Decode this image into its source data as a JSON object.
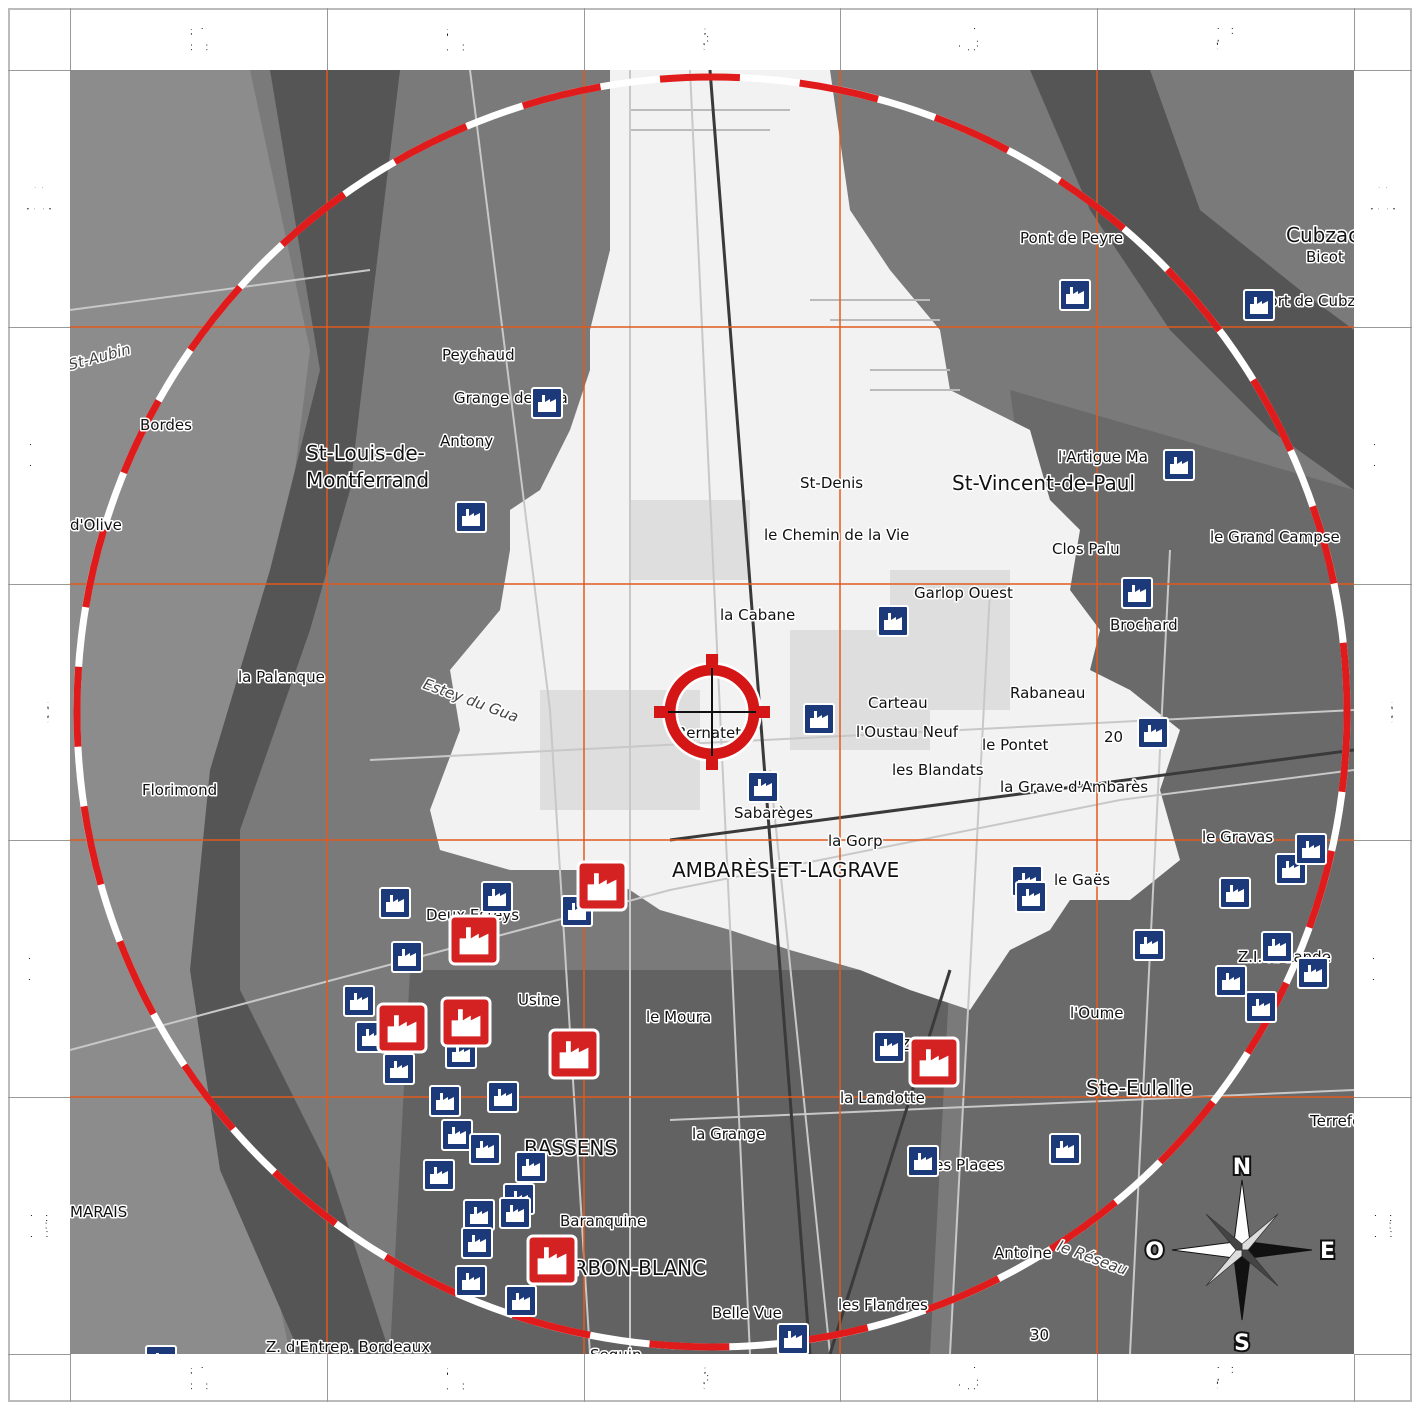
{
  "columns": [
    "1",
    "2",
    "3",
    "4",
    "5"
  ],
  "rows": [
    "A",
    "B",
    "C",
    "D",
    "E"
  ],
  "compass": {
    "n": "N",
    "s": "S",
    "e": "E",
    "w": "O"
  },
  "colors": {
    "land_dark": "#6e6e6e",
    "land_mid": "#8a8a8a",
    "water": "#4f4f4f",
    "highlight_area": "#f4f4f4",
    "grid_line": "#e05a20",
    "ring_red": "#e01b1b",
    "ring_white": "#ffffff",
    "target": "#d51616",
    "site_blue": "#1c3a7a",
    "site_red": "#d42121"
  },
  "place_labels": [
    {
      "text": "Peychaud"
    },
    {
      "text": "Grange de Gua"
    },
    {
      "text": "Antony"
    },
    {
      "text": "St-Louis-de-"
    },
    {
      "text": "Montferrand"
    },
    {
      "text": "St-Aubin"
    },
    {
      "text": "Bordes"
    },
    {
      "text": "d'Olive"
    },
    {
      "text": "Pont de Peyre"
    },
    {
      "text": "Cubzac"
    },
    {
      "text": "Bicot"
    },
    {
      "text": "Port de Cubzac"
    },
    {
      "text": "St-Denis"
    },
    {
      "text": "St-Vincent-de-Paul"
    },
    {
      "text": "l'Artigue Ma"
    },
    {
      "text": "le Chemin de la Vie"
    },
    {
      "text": "Clos Palu"
    },
    {
      "text": "le Grand Campse"
    },
    {
      "text": "Garlop Ouest"
    },
    {
      "text": "la Cabane"
    },
    {
      "text": "Brochard"
    },
    {
      "text": "la Palanque"
    },
    {
      "text": "Estey du Gua"
    },
    {
      "text": "Carteau"
    },
    {
      "text": "Rabaneau"
    },
    {
      "text": "l'Oustau Neuf"
    },
    {
      "text": "Bernatet"
    },
    {
      "text": "le Pontet"
    },
    {
      "text": "les Blandats"
    },
    {
      "text": "la Grave d'Ambarès"
    },
    {
      "text": "Florimond"
    },
    {
      "text": "Sabarèges"
    },
    {
      "text": "la Gorp"
    },
    {
      "text": "AMBARÈS-ET-LAGRAVE"
    },
    {
      "text": "le Gravas"
    },
    {
      "text": "le Gaës"
    },
    {
      "text": "Deux Esteys"
    },
    {
      "text": "Z.I. la Lande"
    },
    {
      "text": "Usine"
    },
    {
      "text": "le Moura"
    },
    {
      "text": "l'Oume"
    },
    {
      "text": "Z.I."
    },
    {
      "text": "la Landotte"
    },
    {
      "text": "Ste-Eulalie"
    },
    {
      "text": "la Grange"
    },
    {
      "text": "Terrefort"
    },
    {
      "text": "BASSENS"
    },
    {
      "text": "les Places"
    },
    {
      "text": "MARAIS"
    },
    {
      "text": "Baranquine"
    },
    {
      "text": "le Réseau"
    },
    {
      "text": "CARBON-BLANC"
    },
    {
      "text": "Antoine"
    },
    {
      "text": "Belle Vue"
    },
    {
      "text": "les Flandres"
    },
    {
      "text": "Z. d'Entrep. Bordeaux"
    },
    {
      "text": "Seguin"
    },
    {
      "text": "20"
    },
    {
      "text": "30"
    }
  ]
}
